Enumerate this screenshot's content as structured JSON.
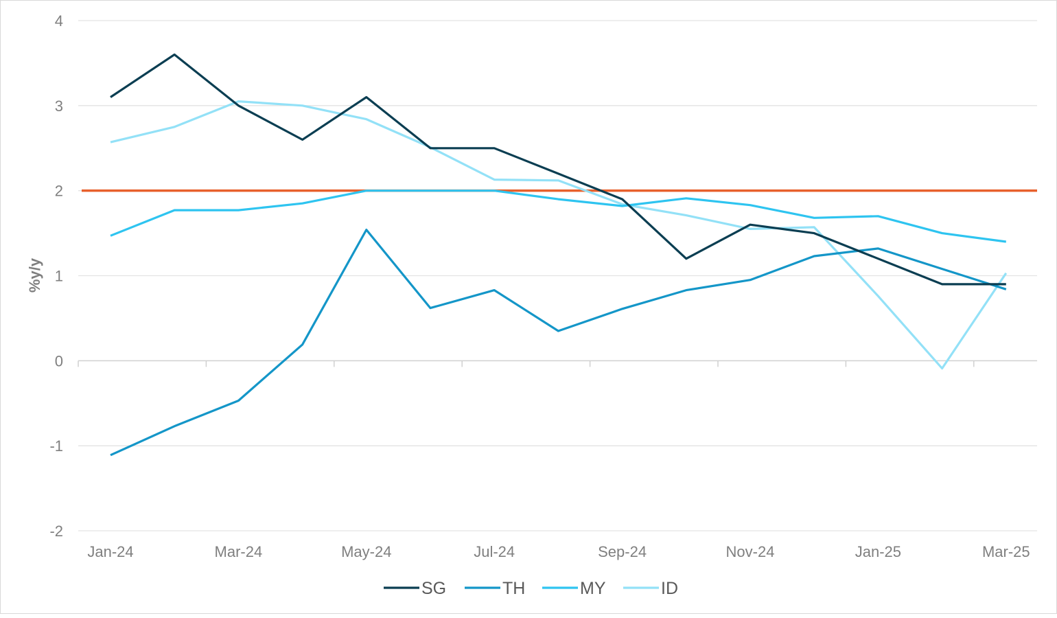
{
  "chart_data": {
    "type": "line",
    "title": "",
    "xlabel": "",
    "ylabel": "%y/y",
    "ylim": [
      -2,
      4
    ],
    "y_ticks": [
      "-2",
      "-1",
      "0",
      "1",
      "2",
      "3",
      "4"
    ],
    "x_tick_labels": [
      "Jan-24",
      "Mar-24",
      "May-24",
      "Jul-24",
      "Sep-24",
      "Nov-24",
      "Jan-25",
      "Mar-25"
    ],
    "x": [
      "Jan-24",
      "Feb-24",
      "Mar-24",
      "Apr-24",
      "May-24",
      "Jun-24",
      "Jul-24",
      "Aug-24",
      "Sep-24",
      "Oct-24",
      "Nov-24",
      "Dec-24",
      "Jan-25",
      "Feb-25",
      "Mar-25"
    ],
    "grid": true,
    "legend_position": "bottom",
    "series": [
      {
        "name": "SG",
        "color": "#0b3e52",
        "values": [
          3.1,
          3.6,
          3.0,
          2.6,
          3.1,
          2.5,
          2.5,
          2.2,
          1.9,
          1.2,
          1.6,
          1.5,
          1.2,
          0.9,
          0.9
        ]
      },
      {
        "name": "TH",
        "color": "#1496c8",
        "values": [
          -1.11,
          -0.77,
          -0.47,
          0.19,
          1.54,
          0.62,
          0.83,
          0.35,
          0.61,
          0.83,
          0.95,
          1.23,
          1.32,
          1.08,
          0.84
        ]
      },
      {
        "name": "MY",
        "color": "#2ec4f0",
        "values": [
          1.47,
          1.77,
          1.77,
          1.85,
          2.0,
          2.0,
          2.0,
          1.9,
          1.82,
          1.91,
          1.83,
          1.68,
          1.7,
          1.5,
          1.4
        ]
      },
      {
        "name": "ID",
        "color": "#93e1f7",
        "values": [
          2.57,
          2.75,
          3.05,
          3.0,
          2.84,
          2.51,
          2.13,
          2.12,
          1.84,
          1.71,
          1.55,
          1.57,
          0.76,
          -0.09,
          1.03
        ]
      }
    ],
    "reference_line": {
      "value": 2,
      "color": "#e8602c"
    }
  }
}
